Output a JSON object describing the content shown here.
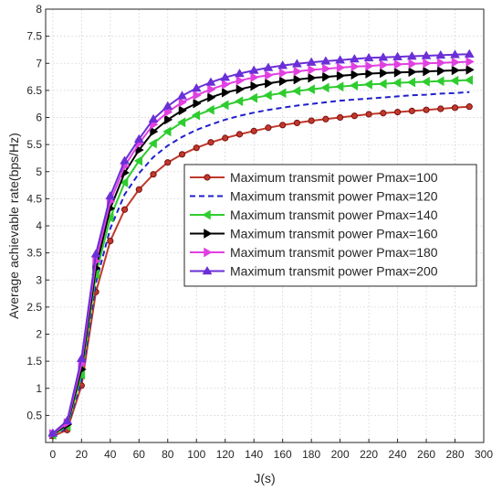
{
  "chart_data": {
    "type": "line",
    "xlabel": "J(s)",
    "ylabel": "Average achievable rate(bps/Hz)",
    "xlim": [
      -5,
      300
    ],
    "ylim": [
      0,
      8
    ],
    "xticks": [
      "0",
      "20",
      "40",
      "60",
      "80",
      "100",
      "120",
      "140",
      "160",
      "180",
      "200",
      "220",
      "240",
      "260",
      "280",
      "300"
    ],
    "yticks": [
      "0.5",
      "1",
      "1.5",
      "2",
      "2.5",
      "3",
      "3.5",
      "4",
      "4.5",
      "5",
      "5.5",
      "6",
      "6.5",
      "7",
      "7.5",
      "8"
    ],
    "grid": true,
    "legend_position": "center-right",
    "x": [
      0,
      10,
      20,
      30,
      40,
      50,
      60,
      70,
      80,
      90,
      100,
      110,
      120,
      130,
      140,
      150,
      160,
      170,
      180,
      190,
      200,
      210,
      220,
      230,
      240,
      250,
      260,
      270,
      280,
      290
    ],
    "series": [
      {
        "name": "Maximum transmit power Pmax=100",
        "color": "#c0392b",
        "marker": "circle",
        "line": "solid",
        "values": [
          0.12,
          0.23,
          1.05,
          2.78,
          3.72,
          4.3,
          4.67,
          4.95,
          5.17,
          5.32,
          5.44,
          5.54,
          5.62,
          5.69,
          5.75,
          5.81,
          5.86,
          5.9,
          5.94,
          5.97,
          6.0,
          6.03,
          6.06,
          6.08,
          6.1,
          6.12,
          6.14,
          6.16,
          6.18,
          6.2
        ]
      },
      {
        "name": "Maximum transmit power Pmax=120",
        "color": "#1f1fcf",
        "marker": "none",
        "line": "dashed",
        "values": [
          0.13,
          0.27,
          1.15,
          2.95,
          3.95,
          4.58,
          4.97,
          5.27,
          5.48,
          5.64,
          5.77,
          5.87,
          5.96,
          6.03,
          6.09,
          6.14,
          6.18,
          6.22,
          6.25,
          6.28,
          6.31,
          6.33,
          6.35,
          6.37,
          6.39,
          6.41,
          6.42,
          6.44,
          6.45,
          6.47
        ]
      },
      {
        "name": "Maximum transmit power Pmax=140",
        "color": "#2ecc2e",
        "marker": "triangle-left",
        "line": "solid",
        "values": [
          0.14,
          0.3,
          1.25,
          3.1,
          4.15,
          4.8,
          5.2,
          5.52,
          5.74,
          5.91,
          6.04,
          6.14,
          6.23,
          6.3,
          6.36,
          6.41,
          6.45,
          6.49,
          6.52,
          6.55,
          6.57,
          6.59,
          6.61,
          6.62,
          6.64,
          6.65,
          6.66,
          6.67,
          6.68,
          6.69
        ]
      },
      {
        "name": "Maximum transmit power Pmax=160",
        "color": "#000000",
        "marker": "triangle-right",
        "line": "solid",
        "values": [
          0.15,
          0.33,
          1.35,
          3.22,
          4.32,
          4.98,
          5.4,
          5.74,
          5.96,
          6.13,
          6.26,
          6.37,
          6.46,
          6.52,
          6.58,
          6.63,
          6.67,
          6.7,
          6.73,
          6.75,
          6.77,
          6.79,
          6.81,
          6.82,
          6.83,
          6.84,
          6.85,
          6.86,
          6.87,
          6.88
        ]
      },
      {
        "name": "Maximum transmit power Pmax=180",
        "color": "#e040e0",
        "marker": "triangle-right",
        "line": "solid",
        "values": [
          0.16,
          0.36,
          1.45,
          3.35,
          4.45,
          5.1,
          5.52,
          5.87,
          6.1,
          6.28,
          6.41,
          6.52,
          6.61,
          6.68,
          6.74,
          6.78,
          6.82,
          6.85,
          6.88,
          6.9,
          6.92,
          6.94,
          6.95,
          6.97,
          6.98,
          6.99,
          7.0,
          7.01,
          7.02,
          7.03
        ]
      },
      {
        "name": "Maximum transmit power Pmax=200",
        "color": "#6a2fd6",
        "marker": "triangle-up",
        "line": "solid",
        "values": [
          0.17,
          0.4,
          1.55,
          3.48,
          4.55,
          5.2,
          5.6,
          5.97,
          6.21,
          6.4,
          6.54,
          6.65,
          6.74,
          6.81,
          6.87,
          6.92,
          6.96,
          6.99,
          7.02,
          7.04,
          7.06,
          7.08,
          7.1,
          7.11,
          7.12,
          7.13,
          7.14,
          7.15,
          7.16,
          7.17
        ]
      }
    ]
  }
}
